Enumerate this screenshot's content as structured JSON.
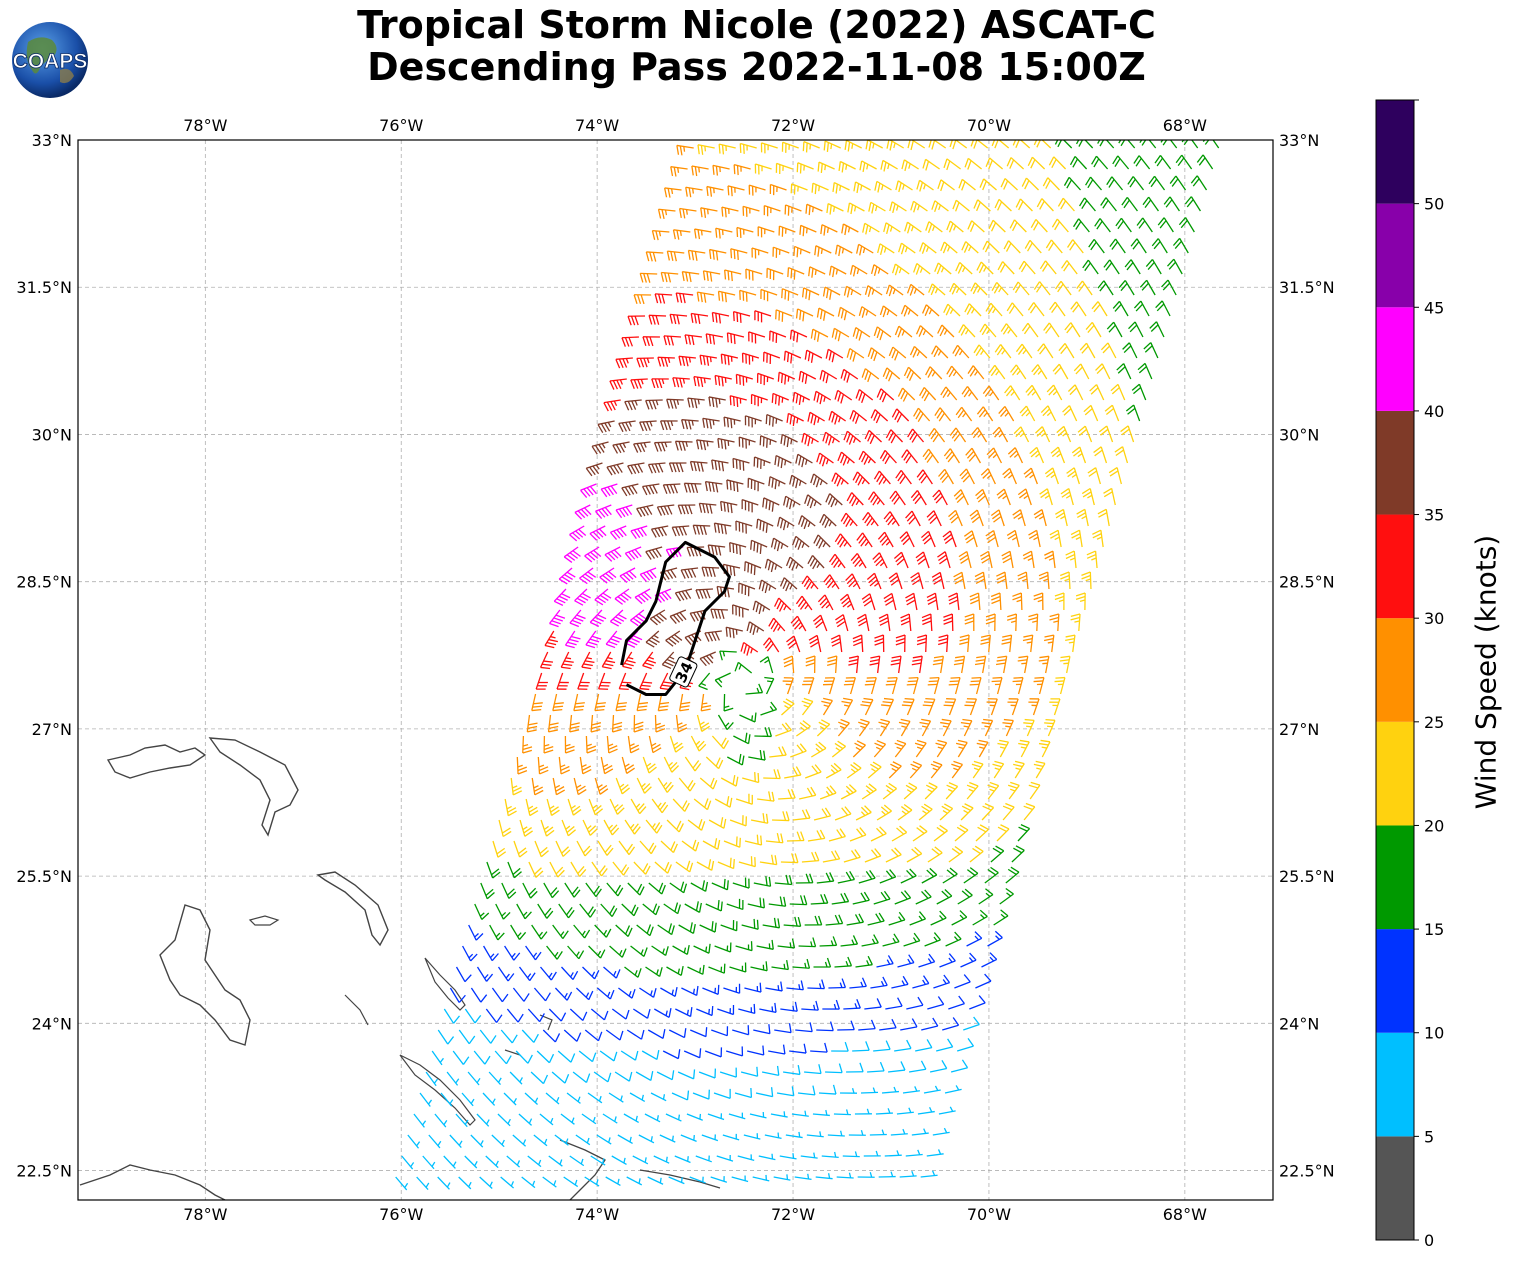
{
  "title_line1": "Tropical Storm Nicole (2022) ASCAT-C",
  "title_line2": "Descending Pass 2022-11-08 15:00Z",
  "logo_text": "COAPS",
  "map": {
    "lon_range": [
      -79.3,
      -67.1
    ],
    "lat_range": [
      22.2,
      33.0
    ],
    "lon_ticks": [
      {
        "value": -78,
        "label": "78°W"
      },
      {
        "value": -76,
        "label": "76°W"
      },
      {
        "value": -74,
        "label": "74°W"
      },
      {
        "value": -72,
        "label": "72°W"
      },
      {
        "value": -70,
        "label": "70°W"
      },
      {
        "value": -68,
        "label": "68°W"
      }
    ],
    "lat_ticks": [
      {
        "value": 33.0,
        "label": "33°N"
      },
      {
        "value": 31.5,
        "label": "31.5°N"
      },
      {
        "value": 30.0,
        "label": "30°N"
      },
      {
        "value": 28.5,
        "label": "28.5°N"
      },
      {
        "value": 27.0,
        "label": "27°N"
      },
      {
        "value": 25.5,
        "label": "25.5°N"
      },
      {
        "value": 24.0,
        "label": "24°N"
      },
      {
        "value": 22.5,
        "label": "22.5°N"
      }
    ],
    "storm_center": {
      "lon": -72.5,
      "lat": 27.4
    },
    "contour_label": "34",
    "contour_34kt": [
      [
        -73.7,
        27.45
      ],
      [
        -73.5,
        27.35
      ],
      [
        -73.3,
        27.35
      ],
      [
        -73.1,
        27.6
      ],
      [
        -73.0,
        27.9
      ],
      [
        -72.9,
        28.2
      ],
      [
        -72.7,
        28.4
      ],
      [
        -72.65,
        28.55
      ],
      [
        -72.8,
        28.75
      ],
      [
        -73.1,
        28.9
      ],
      [
        -73.3,
        28.7
      ],
      [
        -73.4,
        28.3
      ],
      [
        -73.5,
        28.1
      ],
      [
        -73.7,
        27.9
      ],
      [
        -73.75,
        27.65
      ]
    ]
  },
  "colorbar": {
    "label": "Wind Speed (knots)",
    "range": [
      0,
      55
    ],
    "bins": [
      {
        "from": 0,
        "to": 5,
        "color": "#555555"
      },
      {
        "from": 5,
        "to": 10,
        "color": "#00bfff"
      },
      {
        "from": 10,
        "to": 15,
        "color": "#0033ff"
      },
      {
        "from": 15,
        "to": 20,
        "color": "#009900"
      },
      {
        "from": 20,
        "to": 25,
        "color": "#ffd20f"
      },
      {
        "from": 25,
        "to": 30,
        "color": "#ff9000"
      },
      {
        "from": 30,
        "to": 35,
        "color": "#ff0f0f"
      },
      {
        "from": 35,
        "to": 40,
        "color": "#7f3a28"
      },
      {
        "from": 40,
        "to": 45,
        "color": "#ff00ff"
      },
      {
        "from": 45,
        "to": 50,
        "color": "#8800aa"
      },
      {
        "from": 50,
        "to": 55,
        "color": "#2e005e"
      }
    ],
    "ticks": [
      "0",
      "5",
      "10",
      "15",
      "20",
      "25",
      "30",
      "35",
      "40",
      "45",
      "50"
    ]
  }
}
